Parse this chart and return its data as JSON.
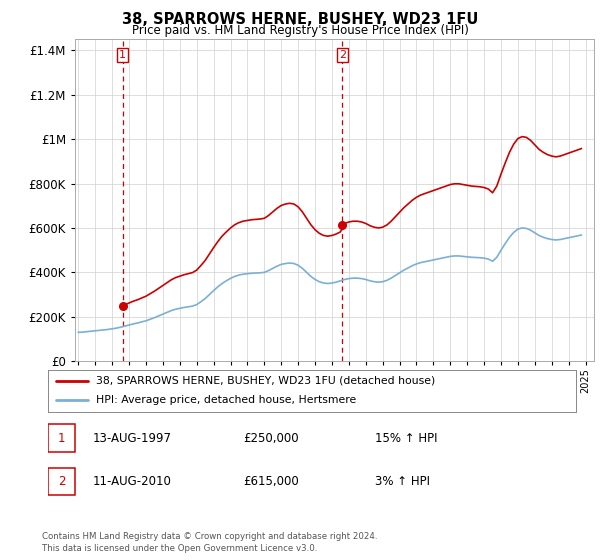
{
  "title": "38, SPARROWS HERNE, BUSHEY, WD23 1FU",
  "subtitle": "Price paid vs. HM Land Registry's House Price Index (HPI)",
  "legend_line1": "38, SPARROWS HERNE, BUSHEY, WD23 1FU (detached house)",
  "legend_line2": "HPI: Average price, detached house, Hertsmere",
  "footnote": "Contains HM Land Registry data © Crown copyright and database right 2024.\nThis data is licensed under the Open Government Licence v3.0.",
  "sale1_date": "13-AUG-1997",
  "sale1_price": "£250,000",
  "sale1_hpi": "15% ↑ HPI",
  "sale2_date": "11-AUG-2010",
  "sale2_price": "£615,000",
  "sale2_hpi": "3% ↑ HPI",
  "hpi_color": "#7ab0d4",
  "price_color": "#cc0000",
  "sale1_year": 1997.62,
  "sale2_year": 2010.62,
  "sale1_price_val": 250000,
  "sale2_price_val": 615000,
  "ylim_min": 0,
  "ylim_max": 1450000,
  "xmin": 1994.8,
  "xmax": 2025.5,
  "hpi_years": [
    1995,
    1995.25,
    1995.5,
    1995.75,
    1996,
    1996.25,
    1996.5,
    1996.75,
    1997,
    1997.25,
    1997.5,
    1997.75,
    1998,
    1998.25,
    1998.5,
    1998.75,
    1999,
    1999.25,
    1999.5,
    1999.75,
    2000,
    2000.25,
    2000.5,
    2000.75,
    2001,
    2001.25,
    2001.5,
    2001.75,
    2002,
    2002.25,
    2002.5,
    2002.75,
    2003,
    2003.25,
    2003.5,
    2003.75,
    2004,
    2004.25,
    2004.5,
    2004.75,
    2005,
    2005.25,
    2005.5,
    2005.75,
    2006,
    2006.25,
    2006.5,
    2006.75,
    2007,
    2007.25,
    2007.5,
    2007.75,
    2008,
    2008.25,
    2008.5,
    2008.75,
    2009,
    2009.25,
    2009.5,
    2009.75,
    2010,
    2010.25,
    2010.5,
    2010.75,
    2011,
    2011.25,
    2011.5,
    2011.75,
    2012,
    2012.25,
    2012.5,
    2012.75,
    2013,
    2013.25,
    2013.5,
    2013.75,
    2014,
    2014.25,
    2014.5,
    2014.75,
    2015,
    2015.25,
    2015.5,
    2015.75,
    2016,
    2016.25,
    2016.5,
    2016.75,
    2017,
    2017.25,
    2017.5,
    2017.75,
    2018,
    2018.25,
    2018.5,
    2018.75,
    2019,
    2019.25,
    2019.5,
    2019.75,
    2020,
    2020.25,
    2020.5,
    2020.75,
    2021,
    2021.25,
    2021.5,
    2021.75,
    2022,
    2022.25,
    2022.5,
    2022.75,
    2023,
    2023.25,
    2023.5,
    2023.75,
    2024,
    2024.25,
    2024.5,
    2024.75
  ],
  "hpi_values": [
    130000,
    131000,
    133000,
    135000,
    137000,
    139000,
    141000,
    143000,
    146000,
    149000,
    153000,
    158000,
    163000,
    168000,
    172000,
    177000,
    182000,
    189000,
    196000,
    204000,
    212000,
    220000,
    228000,
    234000,
    238000,
    242000,
    245000,
    248000,
    255000,
    268000,
    282000,
    300000,
    318000,
    335000,
    350000,
    362000,
    373000,
    382000,
    388000,
    392000,
    394000,
    396000,
    397000,
    398000,
    400000,
    408000,
    418000,
    428000,
    436000,
    440000,
    442000,
    440000,
    432000,
    418000,
    400000,
    382000,
    368000,
    358000,
    352000,
    350000,
    352000,
    356000,
    362000,
    368000,
    372000,
    374000,
    374000,
    372000,
    368000,
    362000,
    358000,
    356000,
    358000,
    364000,
    374000,
    386000,
    398000,
    410000,
    420000,
    430000,
    438000,
    444000,
    448000,
    452000,
    456000,
    460000,
    464000,
    468000,
    472000,
    474000,
    474000,
    472000,
    470000,
    468000,
    467000,
    466000,
    464000,
    460000,
    450000,
    468000,
    500000,
    530000,
    558000,
    580000,
    595000,
    600000,
    598000,
    590000,
    578000,
    566000,
    558000,
    552000,
    548000,
    546000,
    548000,
    552000,
    556000,
    560000,
    564000,
    568000
  ]
}
